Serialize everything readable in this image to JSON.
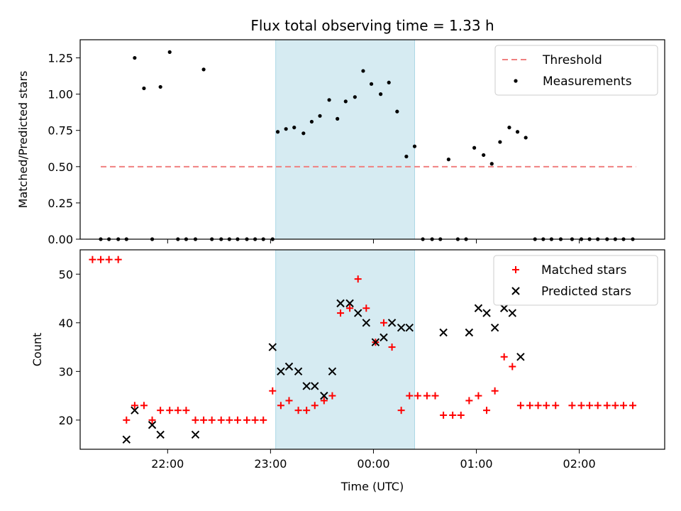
{
  "chart_data": [
    {
      "type": "scatter",
      "title": "Flux total observing time = 1.33 h",
      "xlabel": "",
      "ylabel": "Matched/Predicted stars",
      "ylim": [
        0,
        1.375
      ],
      "yticks": [
        "0.00",
        "0.25",
        "0.50",
        "0.75",
        "1.00",
        "1.25"
      ],
      "legend_position": "upper-right",
      "threshold": {
        "name": "Threshold",
        "value": 0.5,
        "x_start": 21.35,
        "x_end": 26.55,
        "color": "#f08080"
      },
      "highlight": {
        "x_start": 23.05,
        "x_end": 24.4,
        "color": "#add8e6"
      },
      "series": [
        {
          "name": "Measurements",
          "color": "#000000",
          "points": [
            [
              21.35,
              0
            ],
            [
              21.43,
              0
            ],
            [
              21.52,
              0
            ],
            [
              21.6,
              0
            ],
            [
              21.68,
              1.25
            ],
            [
              21.77,
              1.04
            ],
            [
              21.85,
              0
            ],
            [
              21.93,
              1.05
            ],
            [
              22.02,
              1.29
            ],
            [
              22.1,
              0
            ],
            [
              22.18,
              0
            ],
            [
              22.27,
              0
            ],
            [
              22.35,
              1.17
            ],
            [
              22.43,
              0
            ],
            [
              22.52,
              0
            ],
            [
              22.6,
              0
            ],
            [
              22.68,
              0
            ],
            [
              22.77,
              0
            ],
            [
              22.85,
              0
            ],
            [
              22.93,
              0
            ],
            [
              23.02,
              0
            ],
            [
              23.07,
              0.74
            ],
            [
              23.15,
              0.76
            ],
            [
              23.23,
              0.77
            ],
            [
              23.32,
              0.73
            ],
            [
              23.4,
              0.81
            ],
            [
              23.48,
              0.85
            ],
            [
              23.57,
              0.96
            ],
            [
              23.65,
              0.83
            ],
            [
              23.73,
              0.95
            ],
            [
              23.82,
              0.98
            ],
            [
              23.9,
              1.16
            ],
            [
              23.98,
              1.07
            ],
            [
              24.07,
              1.0
            ],
            [
              24.15,
              1.08
            ],
            [
              24.23,
              0.88
            ],
            [
              24.32,
              0.57
            ],
            [
              24.4,
              0.64
            ],
            [
              24.48,
              0
            ],
            [
              24.57,
              0
            ],
            [
              24.65,
              0
            ],
            [
              24.73,
              0.55
            ],
            [
              24.82,
              0
            ],
            [
              24.9,
              0
            ],
            [
              24.98,
              0.63
            ],
            [
              25.07,
              0.58
            ],
            [
              25.15,
              0.52
            ],
            [
              25.23,
              0.67
            ],
            [
              25.32,
              0.77
            ],
            [
              25.4,
              0.74
            ],
            [
              25.48,
              0.7
            ],
            [
              25.57,
              0
            ],
            [
              25.65,
              0
            ],
            [
              25.73,
              0
            ],
            [
              25.82,
              0
            ],
            [
              25.93,
              0
            ],
            [
              26.02,
              0
            ],
            [
              26.1,
              0
            ],
            [
              26.18,
              0
            ],
            [
              26.27,
              0
            ],
            [
              26.35,
              0
            ],
            [
              26.43,
              0
            ],
            [
              26.52,
              0
            ]
          ]
        }
      ]
    },
    {
      "type": "scatter",
      "title": "",
      "xlabel": "Time (UTC)",
      "ylabel": "Count",
      "ylim": [
        14,
        55
      ],
      "yticks": [
        "20",
        "30",
        "40",
        "50"
      ],
      "xticks": [
        {
          "value": 22,
          "label": "22:00"
        },
        {
          "value": 23,
          "label": "23:00"
        },
        {
          "value": 24,
          "label": "00:00"
        },
        {
          "value": 25,
          "label": "01:00"
        },
        {
          "value": 26,
          "label": "02:00"
        }
      ],
      "xlim": [
        21.15,
        26.83
      ],
      "legend_position": "upper-right",
      "highlight": {
        "x_start": 23.05,
        "x_end": 24.4,
        "color": "#add8e6"
      },
      "series": [
        {
          "name": "Matched stars",
          "marker": "plus",
          "color": "#ff0000",
          "points": [
            [
              21.27,
              53
            ],
            [
              21.35,
              53
            ],
            [
              21.43,
              53
            ],
            [
              21.52,
              53
            ],
            [
              21.6,
              20
            ],
            [
              21.68,
              23
            ],
            [
              21.77,
              23
            ],
            [
              21.85,
              20
            ],
            [
              21.93,
              22
            ],
            [
              22.02,
              22
            ],
            [
              22.1,
              22
            ],
            [
              22.18,
              22
            ],
            [
              22.27,
              20
            ],
            [
              22.35,
              20
            ],
            [
              22.43,
              20
            ],
            [
              22.52,
              20
            ],
            [
              22.6,
              20
            ],
            [
              22.68,
              20
            ],
            [
              22.77,
              20
            ],
            [
              22.85,
              20
            ],
            [
              22.93,
              20
            ],
            [
              23.02,
              26
            ],
            [
              23.1,
              23
            ],
            [
              23.18,
              24
            ],
            [
              23.27,
              22
            ],
            [
              23.35,
              22
            ],
            [
              23.43,
              23
            ],
            [
              23.52,
              24
            ],
            [
              23.6,
              25
            ],
            [
              23.68,
              42
            ],
            [
              23.77,
              43
            ],
            [
              23.85,
              49
            ],
            [
              23.93,
              43
            ],
            [
              24.02,
              36
            ],
            [
              24.1,
              40
            ],
            [
              24.18,
              35
            ],
            [
              24.27,
              22
            ],
            [
              24.35,
              25
            ],
            [
              24.43,
              25
            ],
            [
              24.52,
              25
            ],
            [
              24.6,
              25
            ],
            [
              24.68,
              21
            ],
            [
              24.77,
              21
            ],
            [
              24.85,
              21
            ],
            [
              24.93,
              24
            ],
            [
              25.02,
              25
            ],
            [
              25.1,
              22
            ],
            [
              25.18,
              26
            ],
            [
              25.27,
              33
            ],
            [
              25.35,
              31
            ],
            [
              25.43,
              23
            ],
            [
              25.52,
              23
            ],
            [
              25.6,
              23
            ],
            [
              25.68,
              23
            ],
            [
              25.77,
              23
            ],
            [
              25.93,
              23
            ],
            [
              26.02,
              23
            ],
            [
              26.1,
              23
            ],
            [
              26.18,
              23
            ],
            [
              26.27,
              23
            ],
            [
              26.35,
              23
            ],
            [
              26.43,
              23
            ],
            [
              26.52,
              23
            ]
          ]
        },
        {
          "name": "Predicted stars",
          "marker": "x",
          "color": "#000000",
          "points": [
            [
              21.6,
              16
            ],
            [
              21.68,
              22
            ],
            [
              21.85,
              19
            ],
            [
              21.93,
              17
            ],
            [
              22.27,
              17
            ],
            [
              23.02,
              35
            ],
            [
              23.1,
              30
            ],
            [
              23.18,
              31
            ],
            [
              23.27,
              30
            ],
            [
              23.35,
              27
            ],
            [
              23.43,
              27
            ],
            [
              23.52,
              25
            ],
            [
              23.6,
              30
            ],
            [
              23.68,
              44
            ],
            [
              23.77,
              44
            ],
            [
              23.85,
              42
            ],
            [
              23.93,
              40
            ],
            [
              24.02,
              36
            ],
            [
              24.1,
              37
            ],
            [
              24.18,
              40
            ],
            [
              24.27,
              39
            ],
            [
              24.35,
              39
            ],
            [
              24.68,
              38
            ],
            [
              24.93,
              38
            ],
            [
              25.02,
              43
            ],
            [
              25.1,
              42
            ],
            [
              25.18,
              39
            ],
            [
              25.27,
              43
            ],
            [
              25.35,
              42
            ],
            [
              25.43,
              33
            ]
          ]
        }
      ]
    }
  ]
}
